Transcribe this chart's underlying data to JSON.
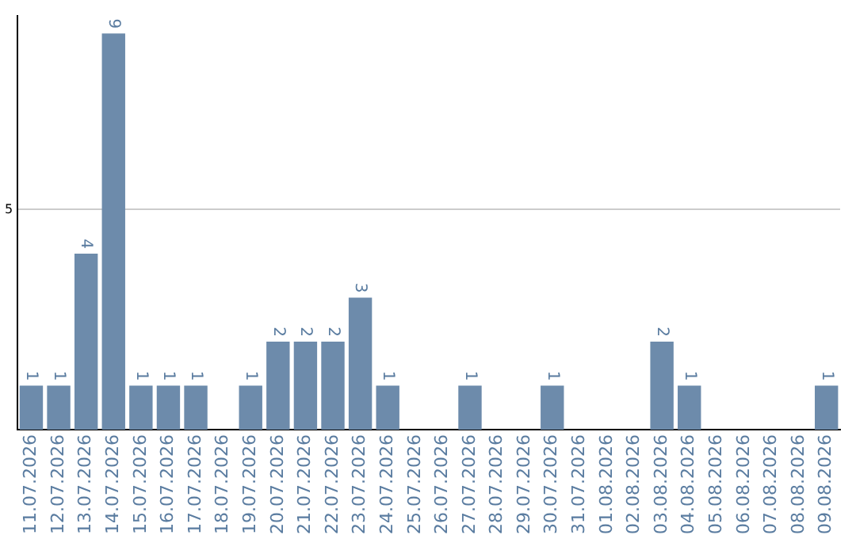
{
  "chart_data": {
    "type": "bar",
    "categories": [
      "11.07.2026",
      "12.07.2026",
      "13.07.2026",
      "14.07.2026",
      "15.07.2026",
      "16.07.2026",
      "17.07.2026",
      "18.07.2026",
      "19.07.2026",
      "20.07.2026",
      "21.07.2026",
      "22.07.2026",
      "23.07.2026",
      "24.07.2026",
      "25.07.2026",
      "26.07.2026",
      "27.07.2026",
      "28.07.2026",
      "29.07.2026",
      "30.07.2026",
      "31.07.2026",
      "01.08.2026",
      "02.08.2026",
      "03.08.2026",
      "04.08.2026",
      "05.08.2026",
      "06.08.2026",
      "07.08.2026",
      "08.08.2026",
      "09.08.2026"
    ],
    "values": [
      1,
      1,
      4,
      9,
      1,
      1,
      1,
      0,
      1,
      2,
      2,
      2,
      3,
      1,
      0,
      0,
      1,
      0,
      0,
      1,
      0,
      0,
      0,
      2,
      1,
      0,
      0,
      0,
      0,
      1
    ],
    "value_labels": [
      "1",
      "1",
      "4",
      "9",
      "1",
      "1",
      "1",
      null,
      "1",
      "2",
      "2",
      "2",
      "3",
      "1",
      null,
      null,
      "1",
      null,
      null,
      "1",
      null,
      null,
      null,
      "2",
      "1",
      null,
      null,
      null,
      null,
      "1"
    ],
    "color": "#6d8bab",
    "ylim": [
      0,
      9.4
    ],
    "yticks": [
      5
    ],
    "grid": "y",
    "legend": false
  }
}
